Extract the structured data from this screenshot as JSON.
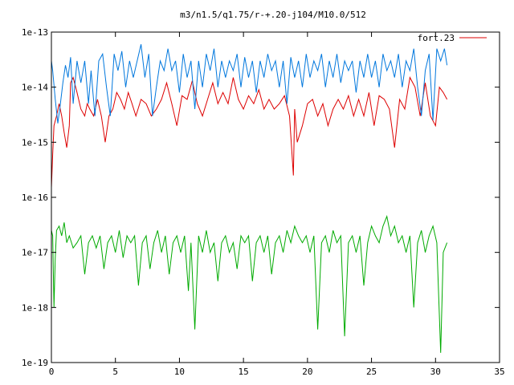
{
  "chart_data": {
    "type": "line",
    "title": "m3/n1.5/q1.75/r-+.20-j104/M10.0/512",
    "xlabel": "",
    "ylabel": "",
    "xlim": [
      0,
      35
    ],
    "ylim": [
      1e-19,
      1e-13
    ],
    "y_scale": "log",
    "grid": false,
    "legend_position": "top-right",
    "x_ticks": [
      0,
      5,
      10,
      15,
      20,
      25,
      30,
      35
    ],
    "x_tick_labels": [
      "0",
      "5",
      "10",
      "15",
      "20",
      "25",
      "30",
      "35"
    ],
    "y_ticks": [
      1e-19,
      1e-18,
      1e-17,
      1e-16,
      1e-15,
      1e-14,
      1e-13
    ],
    "y_tick_labels": [
      "1e-19",
      "1e-18",
      "1e-17",
      "1e-16",
      "1e-15",
      "1e-14",
      "1e-13"
    ],
    "series": [
      {
        "name": "fort.23",
        "color": "#dd0000",
        "x": [
          0.0,
          0.1,
          0.2,
          0.4,
          0.6,
          0.8,
          1.0,
          1.2,
          1.4,
          1.5,
          1.7,
          2.0,
          2.3,
          2.6,
          2.8,
          3.0,
          3.3,
          3.6,
          3.9,
          4.2,
          4.5,
          4.8,
          5.1,
          5.4,
          5.7,
          6.0,
          6.3,
          6.6,
          7.0,
          7.4,
          7.8,
          8.2,
          8.6,
          9.0,
          9.4,
          9.8,
          10.2,
          10.6,
          11.0,
          11.4,
          11.8,
          12.2,
          12.6,
          13.0,
          13.4,
          13.8,
          14.2,
          14.6,
          15.0,
          15.4,
          15.8,
          16.2,
          16.6,
          17.0,
          17.4,
          17.8,
          18.2,
          18.6,
          18.9,
          19.0,
          19.2,
          19.6,
          20.0,
          20.4,
          20.8,
          21.2,
          21.6,
          22.0,
          22.4,
          22.8,
          23.2,
          23.6,
          24.0,
          24.4,
          24.8,
          25.2,
          25.6,
          26.0,
          26.4,
          26.8,
          27.2,
          27.6,
          28.0,
          28.4,
          28.8,
          29.2,
          29.6,
          30.0,
          30.3,
          30.6,
          30.9
        ],
        "y": [
          1.5e-16,
          6e-16,
          2e-15,
          3e-15,
          5e-15,
          3e-15,
          1.5e-15,
          8e-16,
          2e-15,
          1.2e-14,
          1.5e-14,
          8e-15,
          4e-15,
          3e-15,
          5e-15,
          4e-15,
          3e-15,
          6e-15,
          3e-15,
          1e-15,
          3e-15,
          4e-15,
          8e-15,
          6e-15,
          4e-15,
          8e-15,
          5e-15,
          3e-15,
          6e-15,
          5e-15,
          3e-15,
          4e-15,
          6e-15,
          1.2e-14,
          5e-15,
          2e-15,
          7e-15,
          6e-15,
          1.3e-14,
          5e-15,
          3e-15,
          6e-15,
          1.2e-14,
          5e-15,
          8e-15,
          5e-15,
          1.5e-14,
          6e-15,
          4e-15,
          7e-15,
          5e-15,
          9e-15,
          4e-15,
          6e-15,
          4e-15,
          5e-15,
          7e-15,
          3e-15,
          2.5e-16,
          4e-15,
          1e-15,
          2e-15,
          5e-15,
          6e-15,
          3e-15,
          5e-15,
          2e-15,
          4e-15,
          6e-15,
          4e-15,
          7e-15,
          3e-15,
          6e-15,
          3e-15,
          8e-15,
          2e-15,
          7e-15,
          6e-15,
          4e-15,
          8e-16,
          6e-15,
          4e-15,
          1.5e-14,
          1e-14,
          3e-15,
          1.2e-14,
          3e-15,
          2e-15,
          1e-14,
          8e-15,
          6e-15
        ]
      },
      {
        "color": "#0077dd",
        "x": [
          0.0,
          0.1,
          0.3,
          0.5,
          0.7,
          0.9,
          1.1,
          1.3,
          1.5,
          1.7,
          2.0,
          2.3,
          2.6,
          2.9,
          3.1,
          3.4,
          3.7,
          4.0,
          4.3,
          4.6,
          4.9,
          5.2,
          5.5,
          5.8,
          6.1,
          6.4,
          6.7,
          7.0,
          7.3,
          7.6,
          7.9,
          8.2,
          8.5,
          8.8,
          9.1,
          9.4,
          9.7,
          10.0,
          10.3,
          10.6,
          10.9,
          11.2,
          11.5,
          11.8,
          12.1,
          12.4,
          12.7,
          13.0,
          13.3,
          13.6,
          13.9,
          14.2,
          14.5,
          14.8,
          15.1,
          15.4,
          15.7,
          16.0,
          16.3,
          16.6,
          16.9,
          17.2,
          17.5,
          17.8,
          18.1,
          18.4,
          18.7,
          19.0,
          19.3,
          19.6,
          19.9,
          20.2,
          20.5,
          20.8,
          21.1,
          21.4,
          21.7,
          22.0,
          22.3,
          22.6,
          22.9,
          23.2,
          23.5,
          23.8,
          24.1,
          24.4,
          24.7,
          25.0,
          25.3,
          25.6,
          25.9,
          26.2,
          26.5,
          26.8,
          27.1,
          27.4,
          27.7,
          28.0,
          28.3,
          28.6,
          28.9,
          29.2,
          29.5,
          29.8,
          30.1,
          30.4,
          30.7,
          30.9
        ],
        "y": [
          3e-14,
          2e-14,
          6e-15,
          2.2e-15,
          5e-15,
          1.2e-14,
          2.5e-14,
          1.5e-14,
          3.5e-14,
          5e-15,
          3e-14,
          1.2e-14,
          3e-14,
          5e-15,
          2e-14,
          3e-15,
          3e-14,
          4e-14,
          1e-14,
          3e-15,
          4e-14,
          2e-14,
          4.5e-14,
          1e-14,
          3e-14,
          1.5e-14,
          3e-14,
          6e-14,
          1.5e-14,
          4e-14,
          3e-15,
          1e-14,
          3e-14,
          2e-14,
          5e-14,
          2e-14,
          3e-14,
          8e-15,
          4e-14,
          1.5e-14,
          3e-14,
          4e-15,
          3e-14,
          1e-14,
          4e-14,
          2e-14,
          5e-14,
          1e-14,
          3e-14,
          1.5e-14,
          3e-14,
          2e-14,
          4e-14,
          1e-14,
          3.5e-14,
          1.5e-14,
          3e-14,
          8e-15,
          3e-14,
          1.5e-14,
          4e-14,
          2e-14,
          3e-14,
          1e-14,
          3e-14,
          5e-15,
          3.5e-14,
          1.5e-14,
          3e-14,
          1e-14,
          4e-14,
          1.5e-14,
          3e-14,
          2e-14,
          4e-14,
          1e-14,
          3e-14,
          1.5e-14,
          4e-14,
          1.2e-14,
          3e-14,
          2e-14,
          3e-14,
          8e-15,
          3e-14,
          1.5e-14,
          4e-14,
          1.5e-14,
          3e-14,
          1e-14,
          4e-14,
          2e-14,
          3e-14,
          1.5e-14,
          4e-14,
          1e-14,
          3e-14,
          2e-14,
          5e-14,
          1e-14,
          3e-15,
          2e-14,
          4e-14,
          2.5e-15,
          5e-14,
          3e-14,
          5e-14,
          2.5e-14
        ]
      },
      {
        "color": "#00aa00",
        "x": [
          0.0,
          0.1,
          0.2,
          0.3,
          0.4,
          0.6,
          0.8,
          1.0,
          1.2,
          1.4,
          1.7,
          2.0,
          2.3,
          2.6,
          2.9,
          3.2,
          3.5,
          3.8,
          4.1,
          4.4,
          4.7,
          5.0,
          5.3,
          5.6,
          5.9,
          6.2,
          6.5,
          6.8,
          7.1,
          7.4,
          7.7,
          8.0,
          8.3,
          8.6,
          8.9,
          9.2,
          9.5,
          9.8,
          10.1,
          10.4,
          10.7,
          10.9,
          11.2,
          11.5,
          11.8,
          12.1,
          12.4,
          12.7,
          13.0,
          13.3,
          13.6,
          13.9,
          14.2,
          14.5,
          14.8,
          15.1,
          15.4,
          15.7,
          16.0,
          16.3,
          16.6,
          16.9,
          17.2,
          17.5,
          17.8,
          18.1,
          18.4,
          18.7,
          19.0,
          19.3,
          19.6,
          19.9,
          20.2,
          20.5,
          20.8,
          21.1,
          21.4,
          21.7,
          22.0,
          22.3,
          22.6,
          22.9,
          23.2,
          23.5,
          23.8,
          24.1,
          24.4,
          24.7,
          25.0,
          25.3,
          25.6,
          25.9,
          26.2,
          26.5,
          26.8,
          27.1,
          27.4,
          27.7,
          28.0,
          28.3,
          28.6,
          28.9,
          29.2,
          29.5,
          29.8,
          30.1,
          30.4,
          30.6,
          30.9
        ],
        "y": [
          2.5e-17,
          2e-17,
          1e-18,
          8e-18,
          2.5e-17,
          3e-17,
          2e-17,
          3.5e-17,
          1.5e-17,
          2e-17,
          1.2e-17,
          1.5e-17,
          2e-17,
          4e-18,
          1.5e-17,
          2e-17,
          1.2e-17,
          2e-17,
          5e-18,
          1.5e-17,
          2e-17,
          1e-17,
          2.5e-17,
          8e-18,
          2e-17,
          1.5e-17,
          2e-17,
          2.5e-18,
          1.5e-17,
          2e-17,
          5e-18,
          1.5e-17,
          2.5e-17,
          1e-17,
          2e-17,
          4e-18,
          1.5e-17,
          2e-17,
          1e-17,
          2e-17,
          2e-18,
          1.5e-17,
          4e-19,
          2e-17,
          1e-17,
          2.5e-17,
          1e-17,
          1.5e-17,
          3e-18,
          1.5e-17,
          2e-17,
          1e-17,
          1.5e-17,
          5e-18,
          2e-17,
          1.5e-17,
          2e-17,
          3e-18,
          1.5e-17,
          2e-17,
          1e-17,
          2e-17,
          4e-18,
          1.5e-17,
          2e-17,
          1e-17,
          2.5e-17,
          1.5e-17,
          3e-17,
          2e-17,
          1.5e-17,
          2e-17,
          1e-17,
          2e-17,
          4e-19,
          1.5e-17,
          2e-17,
          1e-17,
          2.5e-17,
          1.5e-17,
          2e-17,
          3e-19,
          1.5e-17,
          2e-17,
          1e-17,
          2e-17,
          2.5e-18,
          1.5e-17,
          3e-17,
          2e-17,
          1.5e-17,
          3e-17,
          4.5e-17,
          2e-17,
          3e-17,
          1.5e-17,
          2e-17,
          1e-17,
          2e-17,
          1e-18,
          1.5e-17,
          2.5e-17,
          1e-17,
          2e-17,
          3e-17,
          1.5e-17,
          1.5e-19,
          1e-17,
          1.5e-17
        ]
      }
    ]
  }
}
